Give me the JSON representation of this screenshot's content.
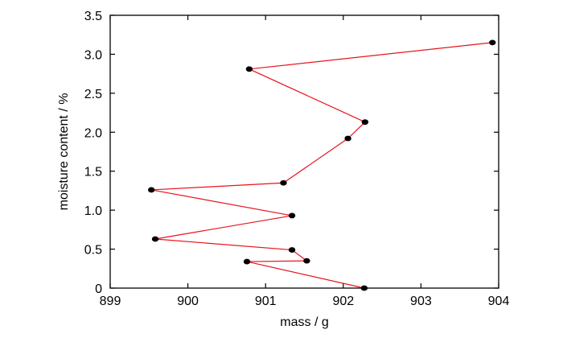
{
  "chart_data": {
    "type": "line",
    "title": "",
    "xlabel": "mass / g",
    "ylabel": "moisture content / %",
    "xlim": [
      899,
      904
    ],
    "ylim": [
      0,
      3.5
    ],
    "x_ticks": [
      899,
      900,
      901,
      902,
      903,
      904
    ],
    "x_tick_labels": [
      "899",
      "900",
      "901",
      "902",
      "903",
      "904"
    ],
    "y_ticks": [
      0,
      0.5,
      1.0,
      1.5,
      2.0,
      2.5,
      3.0,
      3.5
    ],
    "y_tick_labels": [
      "0",
      "0.5",
      "1.0",
      "1.5",
      "2.0",
      "2.5",
      "3.0",
      "3.5"
    ],
    "grid": false,
    "legend": "none",
    "series": [
      {
        "line_color": "#e8141c",
        "marker_color": "#000000",
        "points": [
          {
            "x": 903.92,
            "y": 3.15
          },
          {
            "x": 900.79,
            "y": 2.81
          },
          {
            "x": 902.28,
            "y": 2.13
          },
          {
            "x": 902.06,
            "y": 1.92
          },
          {
            "x": 901.23,
            "y": 1.35
          },
          {
            "x": 899.53,
            "y": 1.26
          },
          {
            "x": 901.34,
            "y": 0.93
          },
          {
            "x": 899.58,
            "y": 0.63
          },
          {
            "x": 901.34,
            "y": 0.49
          },
          {
            "x": 901.53,
            "y": 0.35
          },
          {
            "x": 900.76,
            "y": 0.34
          },
          {
            "x": 902.27,
            "y": 0.0
          }
        ]
      }
    ]
  }
}
